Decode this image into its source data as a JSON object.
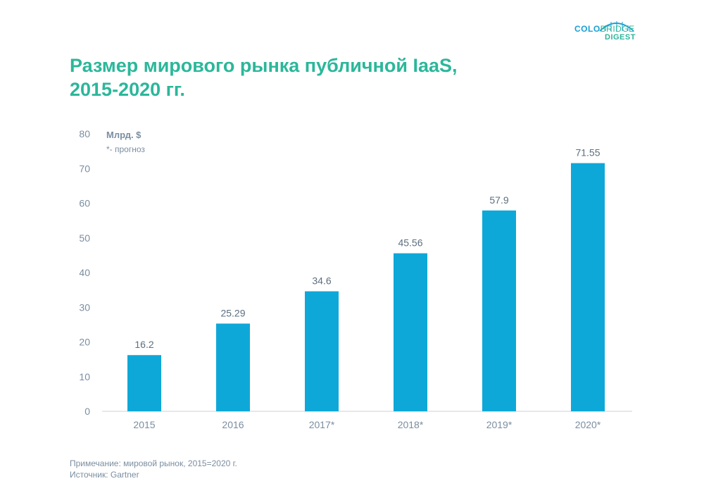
{
  "logo": {
    "colo": "COLO",
    "bridge": "BRIDGE",
    "digest": "DIGEST"
  },
  "title": {
    "line1": "Размер мирового рынка публичной IaaS,",
    "line2": "2015-2020 гг."
  },
  "colors": {
    "bar": "#0ea8d8",
    "title": "#2bb79a",
    "axis_text": "#7a8ea0",
    "label_text": "#5c6f80"
  },
  "chart_data": {
    "type": "bar",
    "categories": [
      "2015",
      "2016",
      "2017*",
      "2018*",
      "2019*",
      "2020*"
    ],
    "values": [
      16.2,
      25.29,
      34.6,
      45.56,
      57.9,
      71.55
    ],
    "value_labels": [
      "16.2",
      "25.29",
      "34.6",
      "45.56",
      "57.9",
      "71.55"
    ],
    "title": "Размер мирового рынка публичной IaaS, 2015-2020 гг.",
    "ylabel": "Млрд. $",
    "ynote": "*- прогноз",
    "xlabel": "",
    "ylim": [
      0,
      80
    ],
    "yticks": [
      0,
      10,
      20,
      30,
      40,
      50,
      60,
      70,
      80
    ],
    "grid": false
  },
  "notes": {
    "note": "Примечание: мировой рынок, 2015=2020 г.",
    "source": "Источник: Gartner"
  }
}
